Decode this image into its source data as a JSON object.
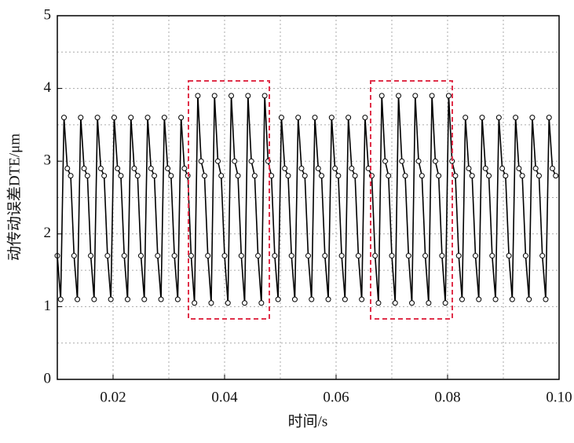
{
  "chart_data": {
    "type": "line",
    "xlabel": "时间/s",
    "ylabel": "动传动误差DTE/μm",
    "xlim": [
      0.01,
      0.1
    ],
    "ylim": [
      0,
      5
    ],
    "xticks": [
      0.02,
      0.04,
      0.06,
      0.08,
      {
        "value": 0.1,
        "label": "0.10"
      }
    ],
    "yticks": [
      0,
      1,
      2,
      3,
      4,
      5
    ],
    "xminorticks": [
      0.03,
      0.05,
      0.07,
      0.09
    ],
    "yminorticks": [
      0.5,
      1.5,
      2.5,
      3.5,
      4.5
    ],
    "grid": true,
    "series": [
      {
        "color": "#000000",
        "x": [
          0.01,
          0.0106,
          0.0112,
          0.0118,
          0.0124,
          0.013,
          0.0136,
          0.0142,
          0.0148,
          0.0154,
          0.016,
          0.0166,
          0.0172,
          0.0178,
          0.0184,
          0.019,
          0.0196,
          0.0202,
          0.0208,
          0.0214,
          0.022,
          0.0226,
          0.0232,
          0.0238,
          0.0244,
          0.025,
          0.0256,
          0.0262,
          0.0268,
          0.0274,
          0.028,
          0.0286,
          0.0292,
          0.0298,
          0.0304,
          0.031,
          0.0316,
          0.0322,
          0.0328,
          0.0334,
          0.034,
          0.0346,
          0.0352,
          0.0358,
          0.0364,
          0.037,
          0.0376,
          0.0382,
          0.0388,
          0.0394,
          0.04,
          0.0406,
          0.0412,
          0.0418,
          0.0424,
          0.043,
          0.0436,
          0.0442,
          0.0448,
          0.0454,
          0.046,
          0.0466,
          0.0472,
          0.0478,
          0.0484,
          0.049,
          0.0496,
          0.0502,
          0.0508,
          0.0514,
          0.052,
          0.0526,
          0.0532,
          0.0538,
          0.0544,
          0.055,
          0.0556,
          0.0562,
          0.0568,
          0.0574,
          0.058,
          0.0586,
          0.0592,
          0.0598,
          0.0604,
          0.061,
          0.0616,
          0.0622,
          0.0628,
          0.0634,
          0.064,
          0.0646,
          0.0652,
          0.0658,
          0.0664,
          0.067,
          0.0676,
          0.0682,
          0.0688,
          0.0694,
          0.07,
          0.0706,
          0.0712,
          0.0718,
          0.0724,
          0.073,
          0.0736,
          0.0742,
          0.0748,
          0.0754,
          0.076,
          0.0766,
          0.0772,
          0.0778,
          0.0784,
          0.079,
          0.0796,
          0.0802,
          0.0808,
          0.0814,
          0.082,
          0.0826,
          0.0832,
          0.0838,
          0.0844,
          0.085,
          0.0856,
          0.0862,
          0.0868,
          0.0874,
          0.088,
          0.0886,
          0.0892,
          0.0898,
          0.0904,
          0.091,
          0.0916,
          0.0922,
          0.0928,
          0.0934,
          0.094,
          0.0946,
          0.0952,
          0.0958,
          0.0964,
          0.097,
          0.0976,
          0.0982,
          0.0988,
          0.0994
        ],
        "values": [
          1.7,
          1.1,
          3.6,
          2.9,
          2.8,
          1.7,
          1.1,
          3.6,
          2.9,
          2.8,
          1.7,
          1.1,
          3.6,
          2.9,
          2.8,
          1.7,
          1.1,
          3.6,
          2.9,
          2.8,
          1.7,
          1.1,
          3.6,
          2.9,
          2.8,
          1.7,
          1.1,
          3.6,
          2.9,
          2.8,
          1.7,
          1.1,
          3.6,
          2.9,
          2.8,
          1.7,
          1.1,
          3.6,
          2.9,
          2.8,
          1.7,
          1.05,
          3.9,
          3.0,
          2.8,
          1.7,
          1.05,
          3.9,
          3.0,
          2.8,
          1.7,
          1.05,
          3.9,
          3.0,
          2.8,
          1.7,
          1.05,
          3.9,
          3.0,
          2.8,
          1.7,
          1.05,
          3.9,
          3.0,
          2.8,
          1.7,
          1.1,
          3.6,
          2.9,
          2.8,
          1.7,
          1.1,
          3.6,
          2.9,
          2.8,
          1.7,
          1.1,
          3.6,
          2.9,
          2.8,
          1.7,
          1.1,
          3.6,
          2.9,
          2.8,
          1.7,
          1.1,
          3.6,
          2.9,
          2.8,
          1.7,
          1.1,
          3.6,
          2.9,
          2.8,
          1.7,
          1.05,
          3.9,
          3.0,
          2.8,
          1.7,
          1.05,
          3.9,
          3.0,
          2.8,
          1.7,
          1.05,
          3.9,
          3.0,
          2.8,
          1.7,
          1.05,
          3.9,
          3.0,
          2.8,
          1.7,
          1.05,
          3.9,
          3.0,
          2.8,
          1.7,
          1.1,
          3.6,
          2.9,
          2.8,
          1.7,
          1.1,
          3.6,
          2.9,
          2.8,
          1.7,
          1.1,
          3.6,
          2.9,
          2.8,
          1.7,
          1.1,
          3.6,
          2.9,
          2.8,
          1.7,
          1.1,
          3.6,
          2.9,
          2.8,
          1.7,
          1.1,
          3.6,
          2.9,
          2.8
        ]
      }
    ]
  }
}
